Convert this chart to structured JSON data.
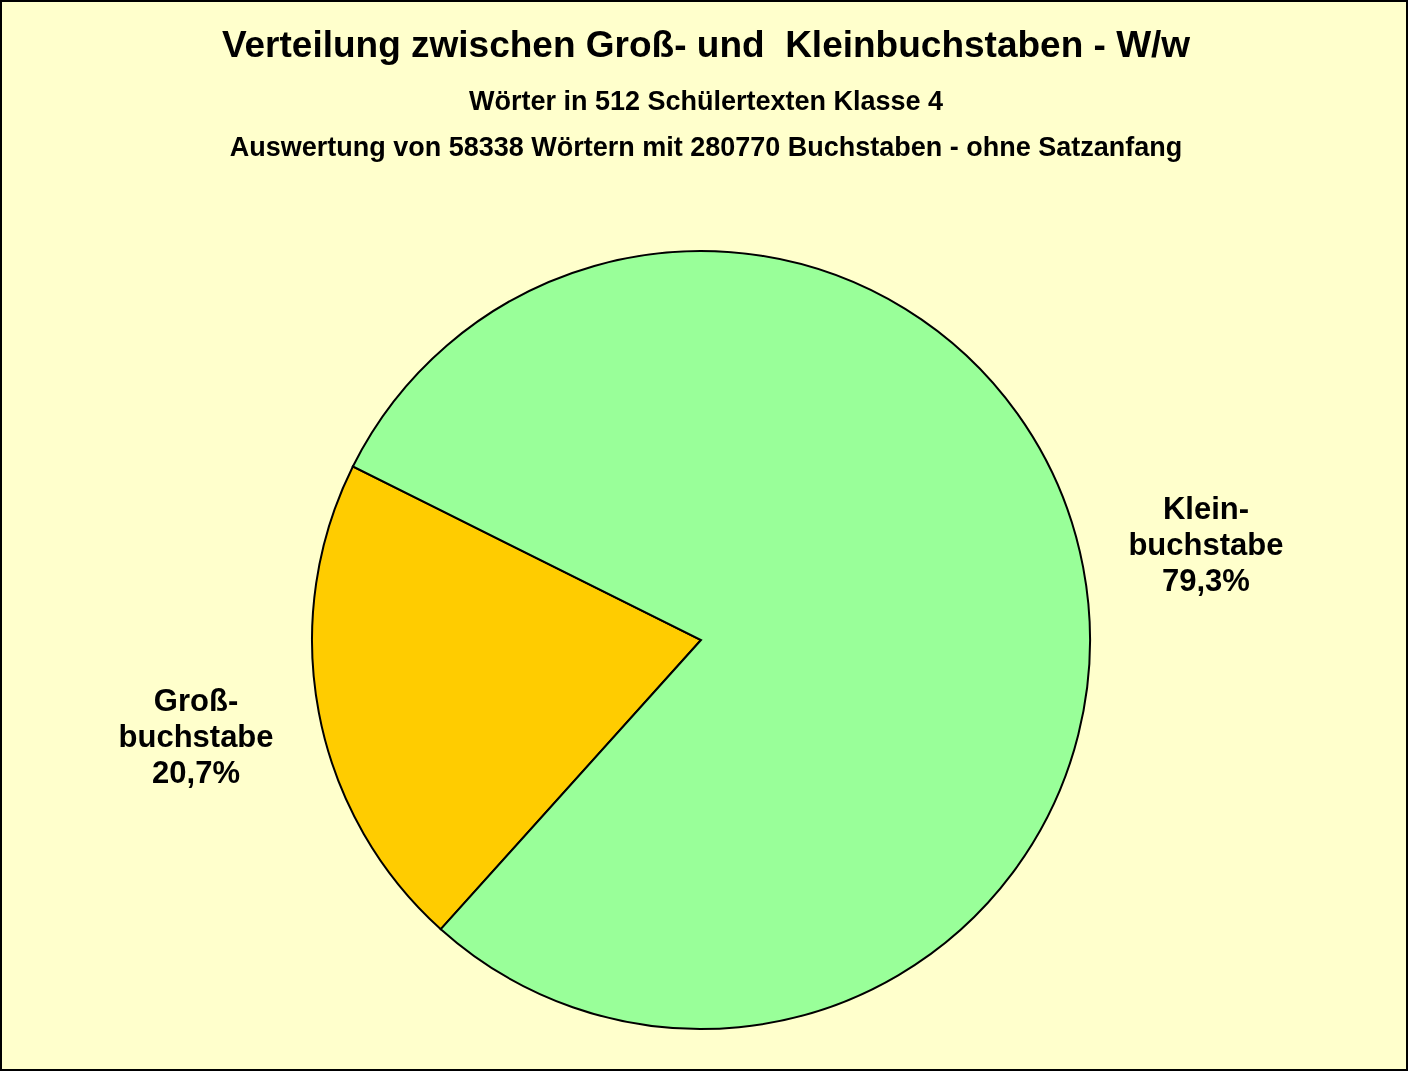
{
  "chart_data": {
    "type": "pie",
    "title": "Verteilung zwischen Groß- und  Kleinbuchstaben - W/w",
    "subtitle": "Wörter in 512 Schülertexten Klasse 4\nAuswertung von 58338 Wörtern mit 280770 Buchstaben - ohne Satzanfang",
    "categories": [
      "Groß-\nbuchstabe",
      "Klein-\nbuchstabe"
    ],
    "values": [
      20.7,
      79.3
    ],
    "value_labels": [
      "20,7%",
      "79,3%"
    ],
    "colors": [
      "#ffcc00",
      "#99ff99"
    ],
    "legend": false
  }
}
